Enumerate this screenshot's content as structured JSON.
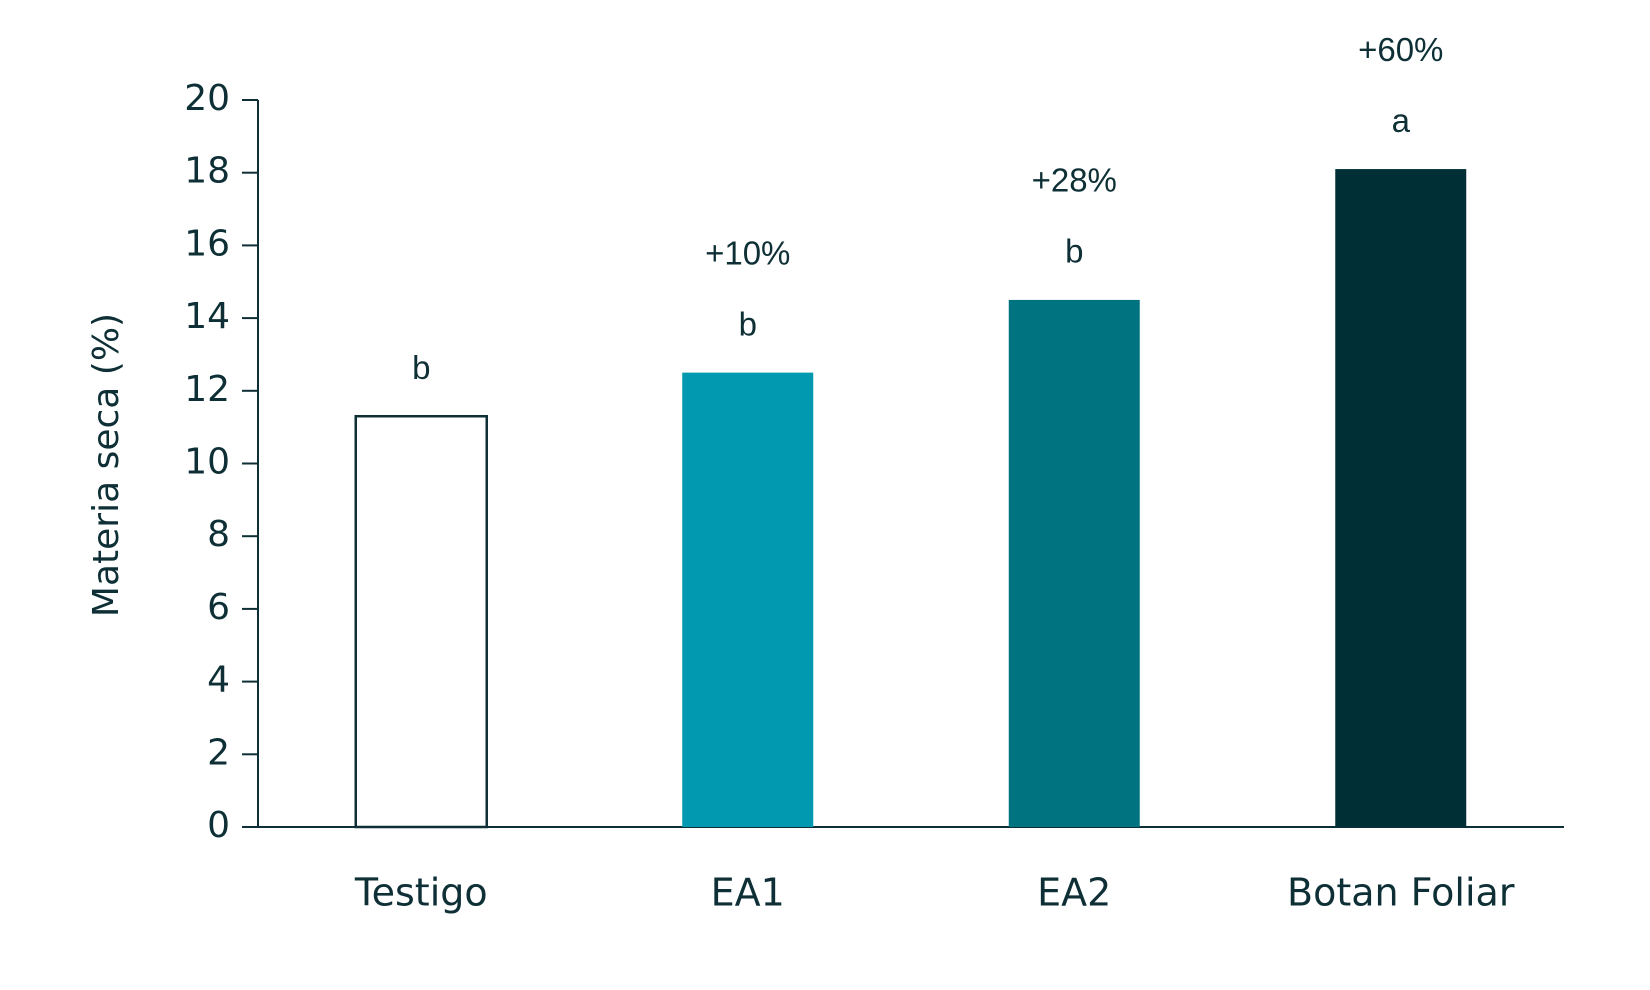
{
  "chart_data": {
    "type": "bar",
    "ylabel": "Materia seca (%)",
    "categories": [
      "Testigo",
      "EA1",
      "EA2",
      "Botan Foliar"
    ],
    "values": [
      11.3,
      12.5,
      14.5,
      18.1
    ],
    "colors": [
      "#ffffff",
      "#0099b0",
      "#007380",
      "#003036"
    ],
    "edgecolor": "#0d2f35",
    "letters": [
      "b",
      "b",
      "b",
      "a"
    ],
    "changes": [
      null,
      "+10%",
      "+28%",
      "+60%"
    ],
    "ylim": [
      0,
      20
    ],
    "yticks": [
      0,
      2,
      4,
      6,
      8,
      10,
      12,
      14,
      16,
      18,
      20
    ],
    "grid": false
  }
}
